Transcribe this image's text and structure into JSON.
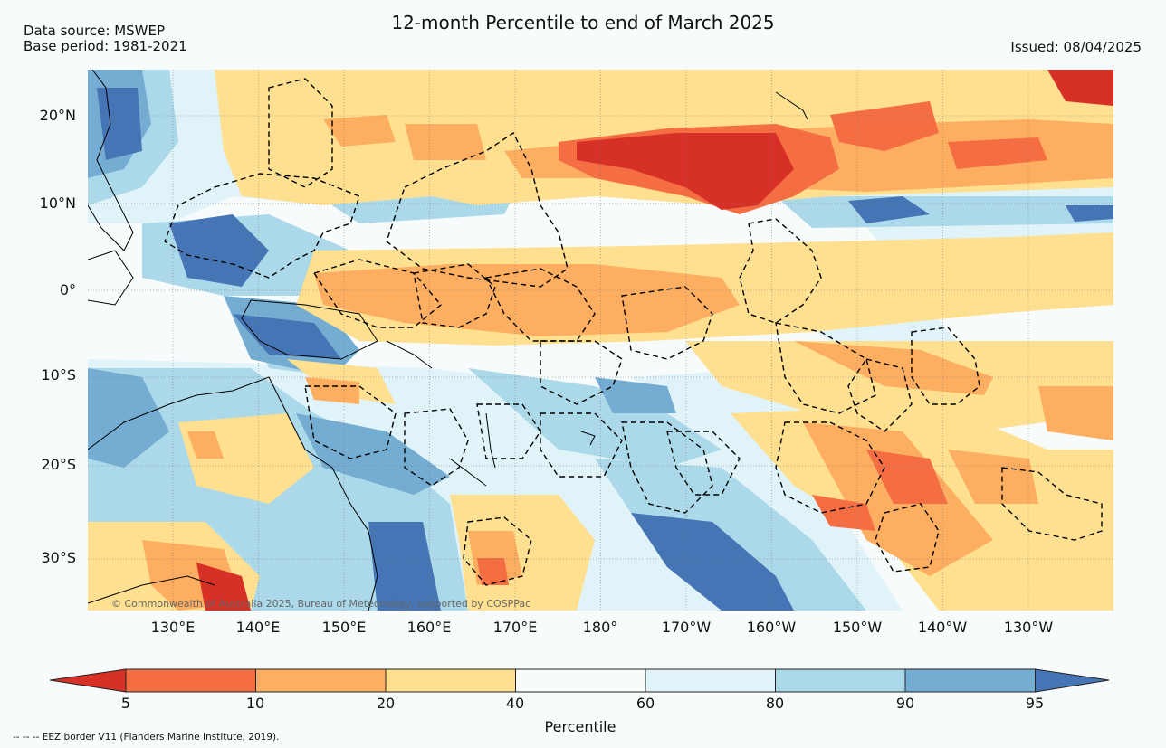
{
  "header": {
    "title": "12-month Percentile to end of March 2025",
    "source_line": "Data source: MSWEP",
    "base_period_line": "Base period: 1981-2021",
    "issued": "Issued: 08/04/2025"
  },
  "map": {
    "projection": "equirectangular",
    "extent": {
      "lon_min": 120,
      "lon_max": 240,
      "lat_min": -37,
      "lat_max": 26
    },
    "lat_labels": [
      {
        "lat": 20,
        "label": "20°N"
      },
      {
        "lat": 10,
        "label": "10°N"
      },
      {
        "lat": 0,
        "label": "0°"
      },
      {
        "lat": -10,
        "label": "10°S"
      },
      {
        "lat": -20,
        "label": "20°S"
      },
      {
        "lat": -30,
        "label": "30°S"
      }
    ],
    "lon_labels": [
      {
        "lon": 130,
        "label": "130°E"
      },
      {
        "lon": 140,
        "label": "140°E"
      },
      {
        "lon": 150,
        "label": "150°E"
      },
      {
        "lon": 160,
        "label": "160°E"
      },
      {
        "lon": 170,
        "label": "170°E"
      },
      {
        "lon": 180,
        "label": "180°"
      },
      {
        "lon": 190,
        "label": "170°W"
      },
      {
        "lon": 200,
        "label": "160°W"
      },
      {
        "lon": 210,
        "label": "150°W"
      },
      {
        "lon": 220,
        "label": "140°W"
      },
      {
        "lon": 230,
        "label": "130°W"
      }
    ],
    "copyright": "© Commonwealth of Australia 2025, Bureau of Meteorology, supported by COSPPac",
    "background_color": "#f7fbfc"
  },
  "colorbar": {
    "label": "Percentile",
    "ticks": [
      "5",
      "10",
      "20",
      "40",
      "60",
      "80",
      "90",
      "95"
    ],
    "colors": {
      "lt5": "#d73027",
      "p5_10": "#f46d43",
      "p10_20": "#fdae61",
      "p20_40": "#fee090",
      "p40_60": "#f7fbfc",
      "p60_80": "#e0f3f8",
      "p80_90": "#abd9e9",
      "p90_95": "#74add1",
      "gt95": "#4575b4"
    }
  },
  "footnote": "-- -- -- EEZ border V11 (Flanders Marine Institute, 2019)."
}
